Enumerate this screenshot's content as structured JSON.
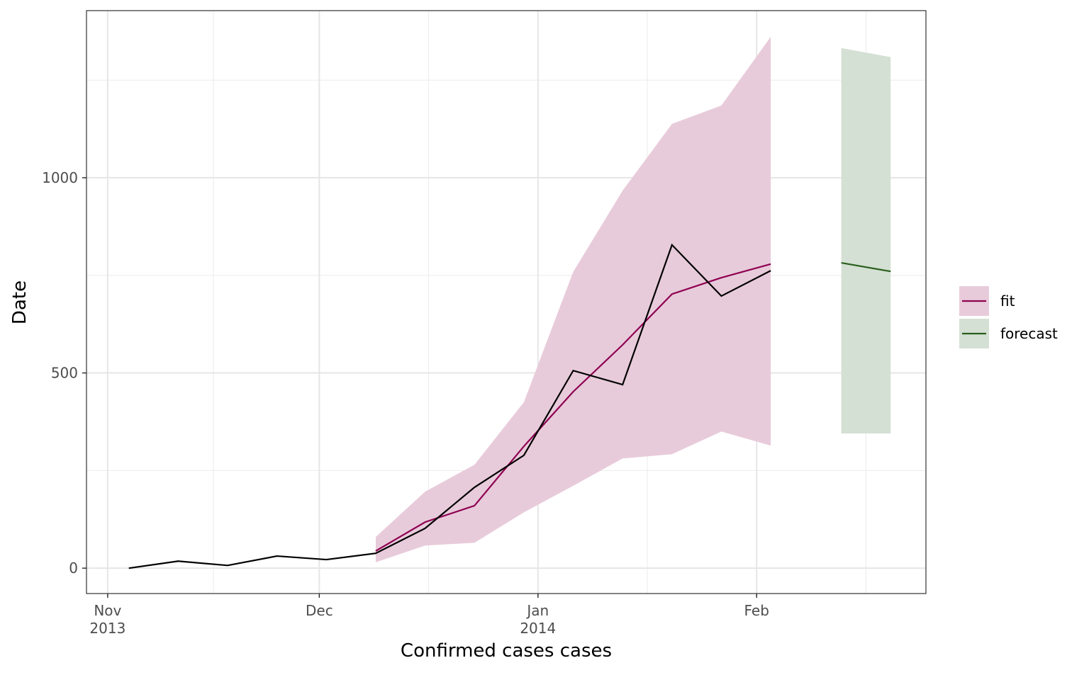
{
  "chart_data": {
    "type": "line",
    "x_label": "Confirmed cases cases",
    "y_label": "Date",
    "xlim": [
      "2013-10-29",
      "2014-02-25"
    ],
    "xticks": [
      {
        "value": "2013-11-01",
        "label": "Nov\n2013"
      },
      {
        "value": "2013-12-01",
        "label": "Dec"
      },
      {
        "value": "2014-01-01",
        "label": "Jan\n2014"
      },
      {
        "value": "2014-02-01",
        "label": "Feb"
      }
    ],
    "ylim": [
      -65,
      1428
    ],
    "yticks": [
      0,
      500,
      1000
    ],
    "grid": true,
    "legend": "right",
    "observed": {
      "color": "#000000",
      "x": [
        "2013-11-04",
        "2013-11-11",
        "2013-11-18",
        "2013-11-25",
        "2013-12-02",
        "2013-12-09",
        "2013-12-16",
        "2013-12-23",
        "2013-12-30",
        "2014-01-06",
        "2014-01-13",
        "2014-01-20",
        "2014-01-27",
        "2014-02-03"
      ],
      "values": [
        0,
        18,
        7,
        31,
        22,
        38,
        102,
        207,
        289,
        506,
        470,
        828,
        697,
        762
      ]
    },
    "series": [
      {
        "name": "fit",
        "color": "#8e0152",
        "fill": "#e8cbda",
        "x": [
          "2013-12-09",
          "2013-12-16",
          "2013-12-23",
          "2013-12-30",
          "2014-01-06",
          "2014-01-13",
          "2014-01-20",
          "2014-01-27",
          "2014-02-03"
        ],
        "values": [
          44,
          118,
          160,
          312,
          452,
          572,
          702,
          744,
          779
        ],
        "lower": [
          15,
          58,
          65,
          143,
          211,
          281,
          292,
          350,
          314
        ],
        "upper": [
          80,
          196,
          265,
          425,
          759,
          967,
          1138,
          1185,
          1361
        ]
      },
      {
        "name": "forecast",
        "color": "#2a5e1e",
        "fill": "#d4e0d3",
        "x": [
          "2014-02-13",
          "2014-02-20"
        ],
        "values": [
          782,
          760
        ],
        "lower": [
          345,
          345
        ],
        "upper": [
          1332,
          1309
        ]
      }
    ]
  }
}
